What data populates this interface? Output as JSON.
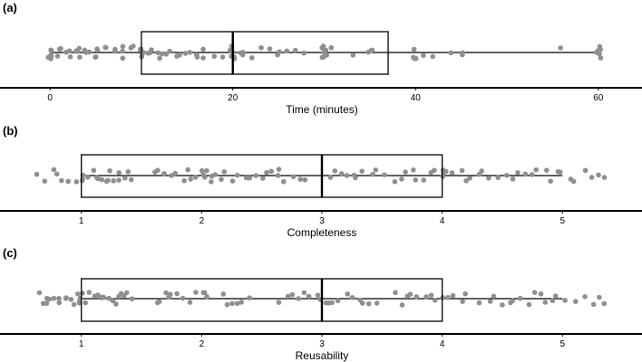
{
  "chart_data": [
    {
      "type": "boxplot",
      "panel_label": "(a)",
      "xlabel": "Time (minutes)",
      "xlim": [
        -2.5,
        62
      ],
      "ticks": [
        0,
        20,
        40,
        60
      ],
      "tick_labels": [
        "0",
        "20",
        "40",
        "60"
      ],
      "box": {
        "whisker_low": 0,
        "q1": 10,
        "median": 20,
        "q3": 37,
        "whisker_high": 60
      },
      "points": [
        0,
        0,
        0,
        0,
        0,
        0,
        1,
        1,
        1,
        2,
        2,
        2,
        3,
        3,
        3,
        3,
        4,
        4,
        4,
        5,
        5,
        5,
        5,
        6,
        6,
        7,
        7,
        8,
        8,
        8,
        9,
        9,
        10,
        10,
        10,
        10,
        10,
        11,
        11,
        11,
        12,
        12,
        12,
        13,
        13,
        14,
        14,
        15,
        15,
        16,
        16,
        17,
        17,
        18,
        19,
        20,
        20,
        20,
        20,
        20,
        20,
        20,
        21,
        21,
        21,
        22,
        23,
        24,
        25,
        25,
        26,
        27,
        28,
        30,
        30,
        30,
        30,
        30,
        30,
        30,
        30,
        31,
        33,
        35,
        35,
        35,
        40,
        40,
        40,
        40,
        41,
        42,
        44,
        45,
        45,
        56,
        60,
        60,
        60,
        60,
        60,
        60,
        60,
        60,
        60,
        60
      ],
      "point_color": "#8f8f8f"
    },
    {
      "type": "boxplot",
      "panel_label": "(b)",
      "xlabel": "Completeness",
      "xlim": [
        0.55,
        5.45
      ],
      "ticks": [
        1,
        2,
        3,
        4,
        5
      ],
      "tick_labels": [
        "1",
        "2",
        "3",
        "4",
        "5"
      ],
      "box": {
        "whisker_low": 1,
        "q1": 1,
        "median": 3,
        "q3": 4,
        "whisker_high": 5
      },
      "points": [
        0.65,
        0.7,
        0.75,
        0.8,
        0.85,
        0.9,
        0.95,
        1.0,
        1.0,
        1.02,
        1.05,
        1.1,
        1.12,
        1.15,
        1.18,
        1.2,
        1.22,
        1.25,
        1.28,
        1.3,
        1.32,
        1.35,
        1.38,
        1.4,
        1.6,
        1.65,
        1.7,
        1.75,
        1.8,
        1.85,
        1.9,
        1.92,
        1.95,
        2.0,
        2.0,
        2.02,
        2.05,
        2.08,
        2.1,
        2.1,
        2.15,
        2.2,
        2.25,
        2.3,
        2.35,
        2.4,
        2.45,
        2.5,
        2.55,
        2.6,
        2.62,
        2.65,
        2.7,
        2.75,
        2.8,
        2.85,
        3.05,
        3.1,
        3.15,
        3.2,
        3.25,
        3.3,
        3.35,
        3.4,
        3.45,
        3.5,
        3.6,
        3.65,
        3.7,
        3.75,
        3.8,
        3.85,
        3.9,
        3.95,
        4.0,
        4.0,
        4.02,
        4.05,
        4.1,
        4.15,
        4.2,
        4.25,
        4.3,
        4.35,
        4.4,
        4.45,
        4.55,
        4.6,
        4.65,
        4.7,
        4.75,
        4.8,
        4.85,
        4.9,
        4.95,
        5.0,
        5.05,
        5.1,
        5.2,
        5.25,
        5.3,
        5.35
      ],
      "point_color": "#8f8f8f"
    },
    {
      "type": "boxplot",
      "panel_label": "(c)",
      "xlabel": "Reusability",
      "xlim": [
        0.55,
        5.45
      ],
      "ticks": [
        1,
        2,
        3,
        4,
        5
      ],
      "tick_labels": [
        "1",
        "2",
        "3",
        "4",
        "5"
      ],
      "box": {
        "whisker_low": 1,
        "q1": 1,
        "median": 3,
        "q3": 4,
        "whisker_high": 5
      },
      "points": [
        0.65,
        0.68,
        0.7,
        0.72,
        0.75,
        0.78,
        0.8,
        0.82,
        0.85,
        0.88,
        0.9,
        0.92,
        0.95,
        0.98,
        1.0,
        1.0,
        1.02,
        1.05,
        1.08,
        1.1,
        1.12,
        1.15,
        1.18,
        1.2,
        1.22,
        1.25,
        1.28,
        1.3,
        1.32,
        1.35,
        1.38,
        1.4,
        1.62,
        1.65,
        1.7,
        1.72,
        1.75,
        1.8,
        1.85,
        1.9,
        1.95,
        2.0,
        2.02,
        2.05,
        2.2,
        2.22,
        2.25,
        2.3,
        2.35,
        2.4,
        2.65,
        2.7,
        2.75,
        2.8,
        2.85,
        2.9,
        2.95,
        3.0,
        3.02,
        3.05,
        3.1,
        3.15,
        3.2,
        3.25,
        3.3,
        3.35,
        3.4,
        3.45,
        3.6,
        3.65,
        3.7,
        3.75,
        3.8,
        3.85,
        3.9,
        3.95,
        4.0,
        4.05,
        4.1,
        4.15,
        4.2,
        4.3,
        4.4,
        4.45,
        4.5,
        4.55,
        4.6,
        4.65,
        4.7,
        4.75,
        4.8,
        4.85,
        4.9,
        4.95,
        5.0,
        5.1,
        5.2,
        5.25,
        5.3,
        5.35
      ],
      "point_color": "#8f8f8f"
    }
  ]
}
